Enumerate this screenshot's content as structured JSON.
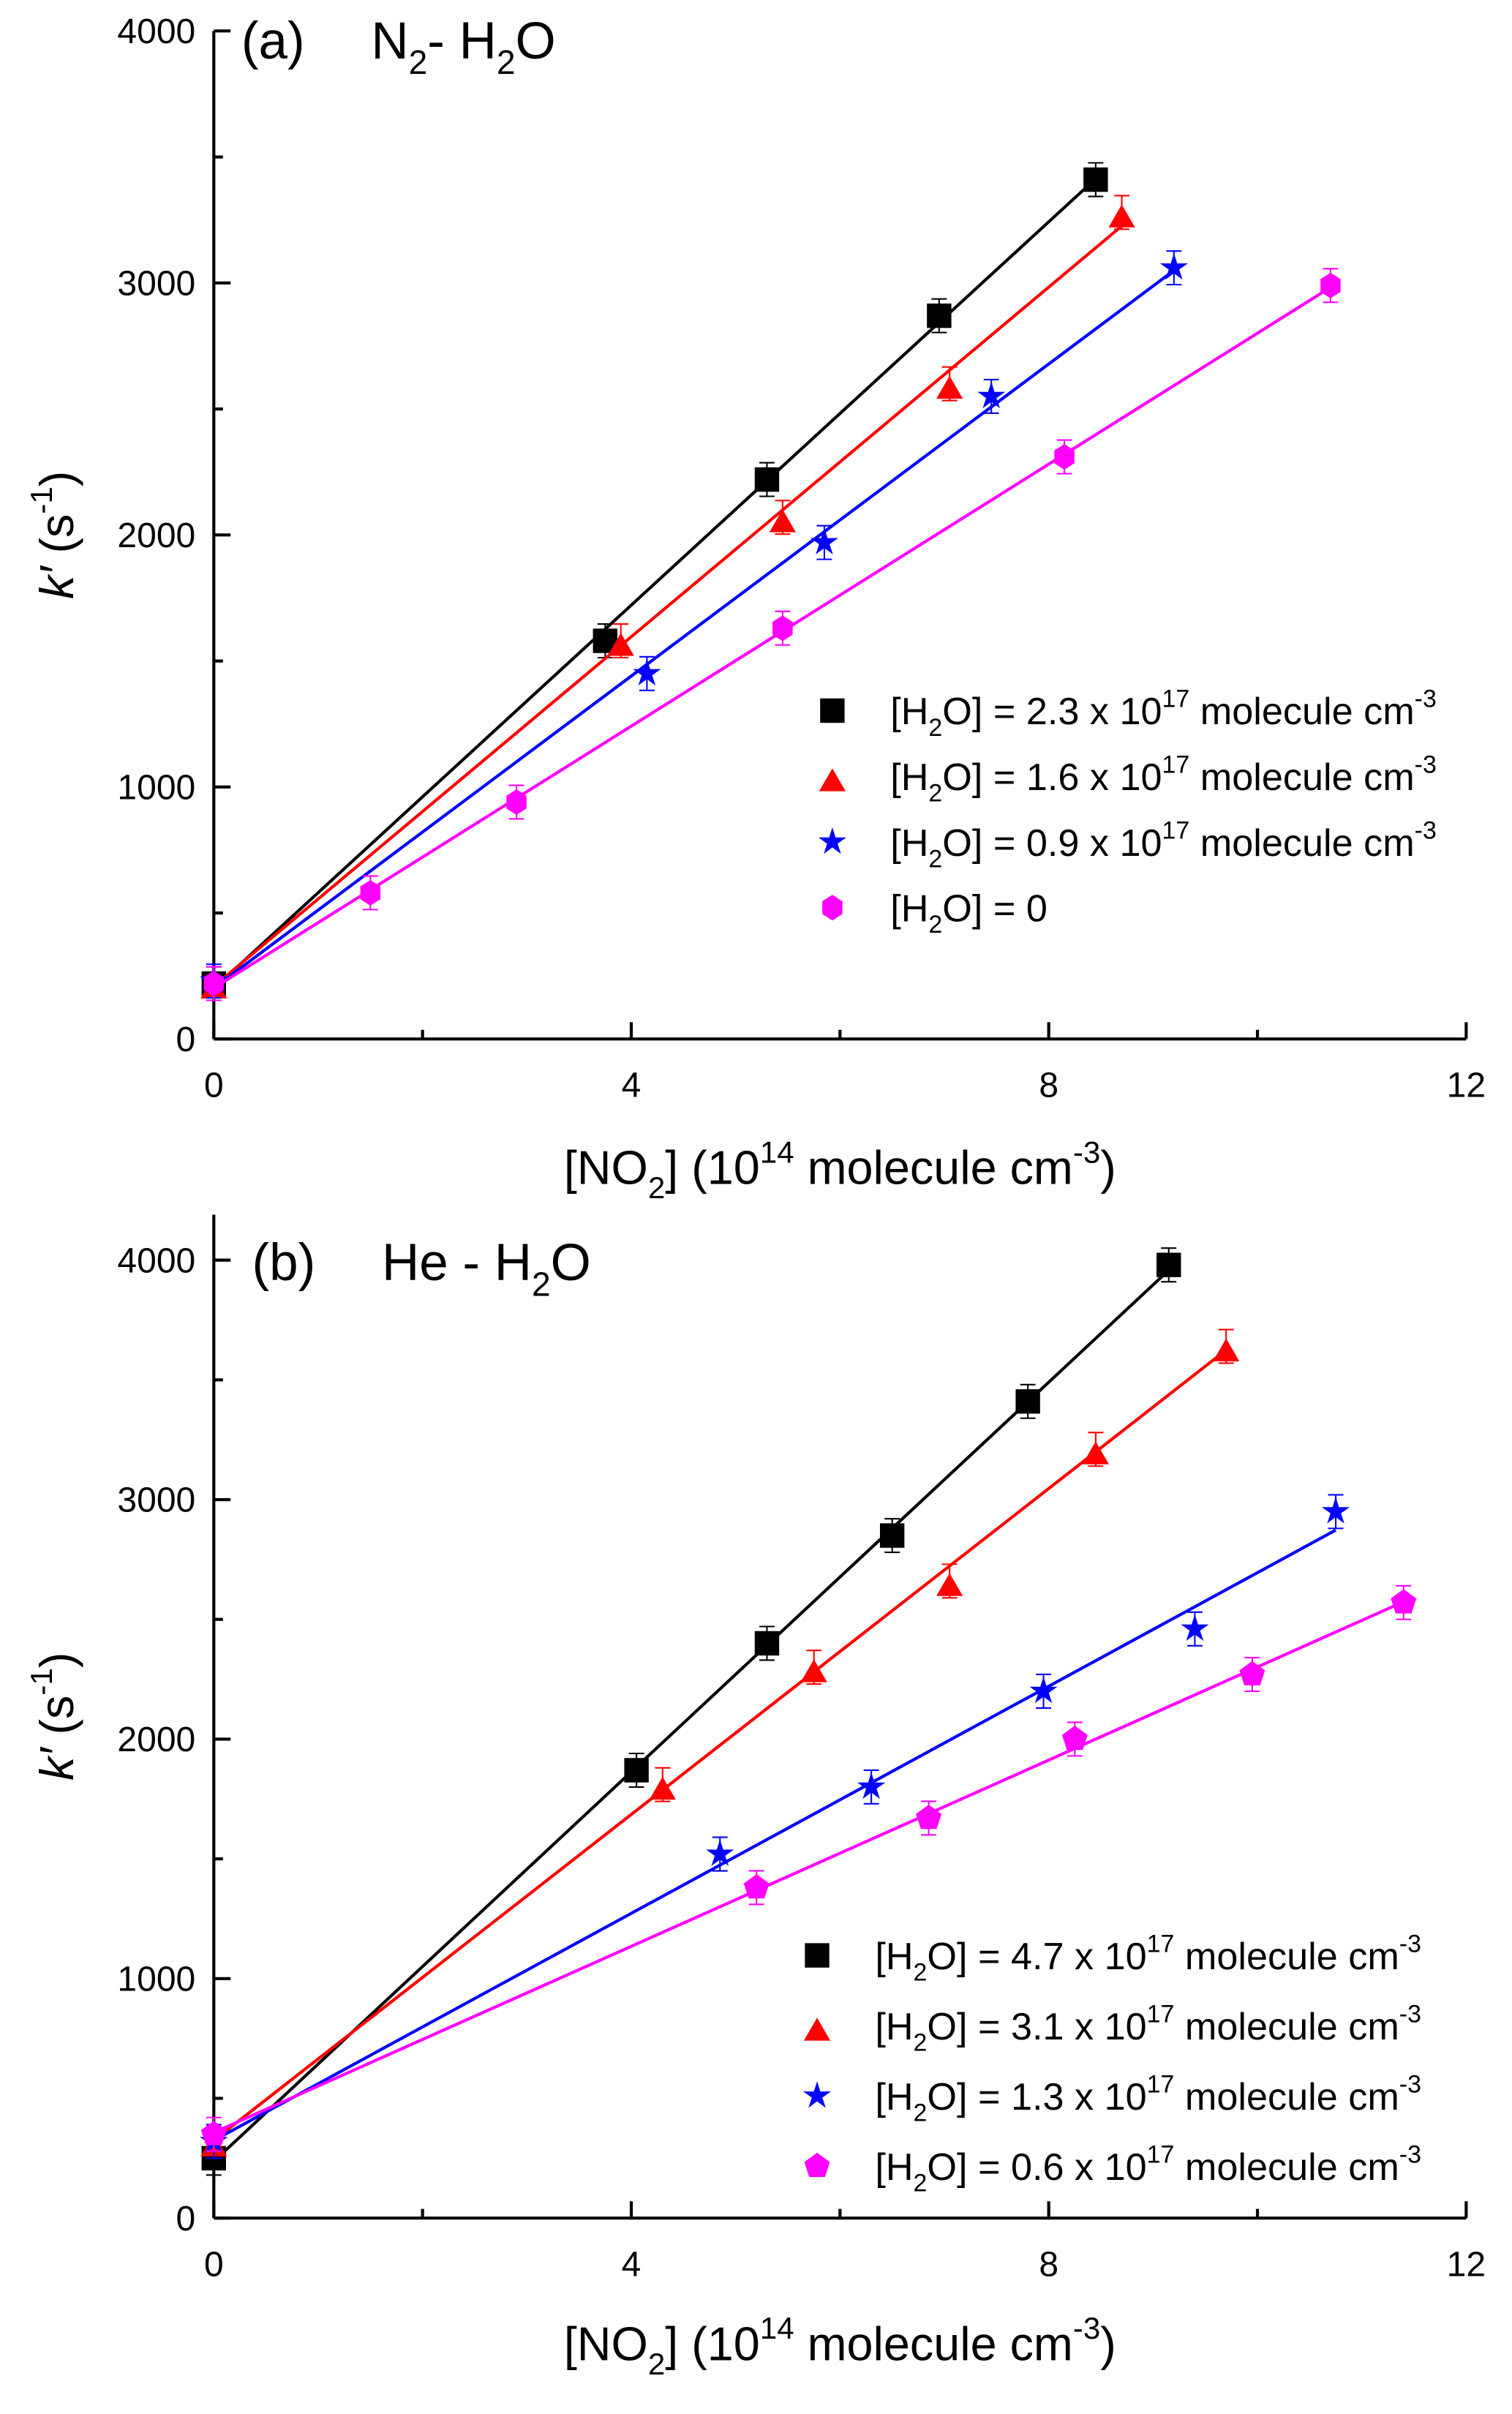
{
  "chart_data": [
    {
      "type": "scatter",
      "panel": "(a)",
      "title": [
        {
          "t": "N",
          "s": ""
        },
        {
          "t": "2",
          "s": "sub"
        },
        {
          "t": "- H",
          "s": ""
        },
        {
          "t": "2",
          "s": "sub"
        },
        {
          "t": "O",
          "s": ""
        }
      ],
      "xlabel": [
        {
          "t": "[NO",
          "s": ""
        },
        {
          "t": "2",
          "s": "sub"
        },
        {
          "t": "]  (10",
          "s": ""
        },
        {
          "t": "14",
          "s": "sup"
        },
        {
          "t": " molecule cm",
          "s": ""
        },
        {
          "t": "-3",
          "s": "sup"
        },
        {
          "t": ")",
          "s": ""
        }
      ],
      "ylabel": [
        {
          "t": "k′",
          "s": "it"
        },
        {
          "t": " (s",
          "s": ""
        },
        {
          "t": "-1",
          "s": "sup"
        },
        {
          "t": ")",
          "s": ""
        }
      ],
      "xlim": [
        0,
        12
      ],
      "ylim": [
        0,
        4000
      ],
      "xticks": [
        "0",
        "4",
        "8",
        "12"
      ],
      "yticks": [
        "0",
        "1000",
        "2000",
        "3000",
        "4000"
      ],
      "legend_position": "bottom-right",
      "series": [
        {
          "name": "[H2O] = 2.3 x 10^17 molecule cm^-3",
          "color": "#000000",
          "marker": "square",
          "label": [
            {
              "t": "[H",
              "s": ""
            },
            {
              "t": "2",
              "s": "sub"
            },
            {
              "t": "O] = 2.3 x 10",
              "s": ""
            },
            {
              "t": "17",
              "s": "sup"
            },
            {
              "t": " molecule cm",
              "s": ""
            },
            {
              "t": "-3",
              "s": "sup"
            }
          ],
          "x": [
            0,
            3.75,
            5.3,
            6.95,
            8.45
          ],
          "y": [
            220,
            1580,
            2220,
            2870,
            3410
          ]
        },
        {
          "name": "[H2O] = 1.6 x 10^17 molecule cm^-3",
          "color": "#ff0000",
          "marker": "triangle",
          "label": [
            {
              "t": "[H",
              "s": ""
            },
            {
              "t": "2",
              "s": "sub"
            },
            {
              "t": "O] = 1.6 x 10",
              "s": ""
            },
            {
              "t": "17",
              "s": "sup"
            },
            {
              "t": " molecule cm",
              "s": ""
            },
            {
              "t": "-3",
              "s": "sup"
            }
          ],
          "x": [
            0,
            3.9,
            5.45,
            7.05,
            8.7
          ],
          "y": [
            220,
            1580,
            2070,
            2600,
            3280
          ]
        },
        {
          "name": "[H2O] = 0.9 x 10^17 molecule cm^-3",
          "color": "#0000ff",
          "marker": "star",
          "label": [
            {
              "t": "[H",
              "s": ""
            },
            {
              "t": "2",
              "s": "sub"
            },
            {
              "t": "O] = 0.9 x 10",
              "s": ""
            },
            {
              "t": "17",
              "s": "sup"
            },
            {
              "t": " molecule cm",
              "s": ""
            },
            {
              "t": "-3",
              "s": "sup"
            }
          ],
          "x": [
            0,
            4.15,
            5.85,
            7.45,
            9.2
          ],
          "y": [
            230,
            1450,
            1970,
            2550,
            3060
          ]
        },
        {
          "name": "[H2O] = 0",
          "color": "#ff00ff",
          "marker": "hexagon",
          "label": [
            {
              "t": "[H",
              "s": ""
            },
            {
              "t": "2",
              "s": "sub"
            },
            {
              "t": "O] = 0",
              "s": ""
            }
          ],
          "x": [
            0,
            1.5,
            2.9,
            5.45,
            8.15,
            10.7
          ],
          "y": [
            220,
            580,
            940,
            1630,
            2310,
            2990
          ]
        }
      ]
    },
    {
      "type": "scatter",
      "panel": "(b)",
      "title": [
        {
          "t": "He - H",
          "s": ""
        },
        {
          "t": "2",
          "s": "sub"
        },
        {
          "t": "O",
          "s": ""
        }
      ],
      "xlabel": [
        {
          "t": "[NO",
          "s": ""
        },
        {
          "t": "2",
          "s": "sub"
        },
        {
          "t": "] (10",
          "s": ""
        },
        {
          "t": "14",
          "s": "sup"
        },
        {
          "t": " molecule cm",
          "s": ""
        },
        {
          "t": "-3",
          "s": "sup"
        },
        {
          "t": ")",
          "s": ""
        }
      ],
      "ylabel": [
        {
          "t": "k′",
          "s": "it"
        },
        {
          "t": " (s",
          "s": ""
        },
        {
          "t": "-1",
          "s": "sup"
        },
        {
          "t": ")",
          "s": ""
        }
      ],
      "xlim": [
        0,
        12
      ],
      "ylim": [
        0,
        4190
      ],
      "xticks": [
        "0",
        "4",
        "8",
        "12"
      ],
      "yticks": [
        "0",
        "1000",
        "2000",
        "3000",
        "4000"
      ],
      "legend_position": "bottom-right",
      "series": [
        {
          "name": "[H2O] = 4.7 x 10^17 molecule cm^-3",
          "color": "#000000",
          "marker": "square",
          "label": [
            {
              "t": "[H",
              "s": ""
            },
            {
              "t": "2",
              "s": "sub"
            },
            {
              "t": "O] = 4.7 x 10",
              "s": ""
            },
            {
              "t": "17",
              "s": "sup"
            },
            {
              "t": " molecule cm",
              "s": ""
            },
            {
              "t": "-3",
              "s": "sup"
            }
          ],
          "x": [
            0,
            4.05,
            5.3,
            6.5,
            7.8,
            9.15
          ],
          "y": [
            250,
            1870,
            2400,
            2850,
            3410,
            3980
          ]
        },
        {
          "name": "[H2O] = 3.1 x 10^17 molecule cm^-3",
          "color": "#ff0000",
          "marker": "triangle",
          "label": [
            {
              "t": "[H",
              "s": ""
            },
            {
              "t": "2",
              "s": "sub"
            },
            {
              "t": "O] = 3.1 x 10",
              "s": ""
            },
            {
              "t": "17",
              "s": "sup"
            },
            {
              "t": " molecule cm",
              "s": ""
            },
            {
              "t": "-3",
              "s": "sup"
            }
          ],
          "x": [
            0,
            4.3,
            5.75,
            7.05,
            8.45,
            9.7
          ],
          "y": [
            320,
            1810,
            2300,
            2660,
            3210,
            3640
          ]
        },
        {
          "name": "[H2O] = 1.3 x 10^17 molecule cm^-3",
          "color": "#0000ff",
          "marker": "star",
          "label": [
            {
              "t": "[H",
              "s": ""
            },
            {
              "t": "2",
              "s": "sub"
            },
            {
              "t": "O] = 1.3 x 10",
              "s": ""
            },
            {
              "t": "17",
              "s": "sup"
            },
            {
              "t": " molecule cm",
              "s": ""
            },
            {
              "t": "-3",
              "s": "sup"
            }
          ],
          "x": [
            0,
            4.85,
            6.3,
            7.95,
            9.4,
            10.75
          ],
          "y": [
            320,
            1520,
            1800,
            2200,
            2460,
            2950
          ]
        },
        {
          "name": "[H2O] = 0.6 x 10^17 molecule cm^-3",
          "color": "#ff00ff",
          "marker": "pentagon",
          "label": [
            {
              "t": "[H",
              "s": ""
            },
            {
              "t": "2",
              "s": "sub"
            },
            {
              "t": "O] = 0.6 x 10",
              "s": ""
            },
            {
              "t": "17",
              "s": "sup"
            },
            {
              "t": " molecule cm",
              "s": ""
            },
            {
              "t": "-3",
              "s": "sup"
            }
          ],
          "x": [
            0,
            5.2,
            6.85,
            8.25,
            9.95,
            11.4
          ],
          "y": [
            350,
            1380,
            1670,
            2000,
            2270,
            2570
          ]
        }
      ]
    }
  ]
}
